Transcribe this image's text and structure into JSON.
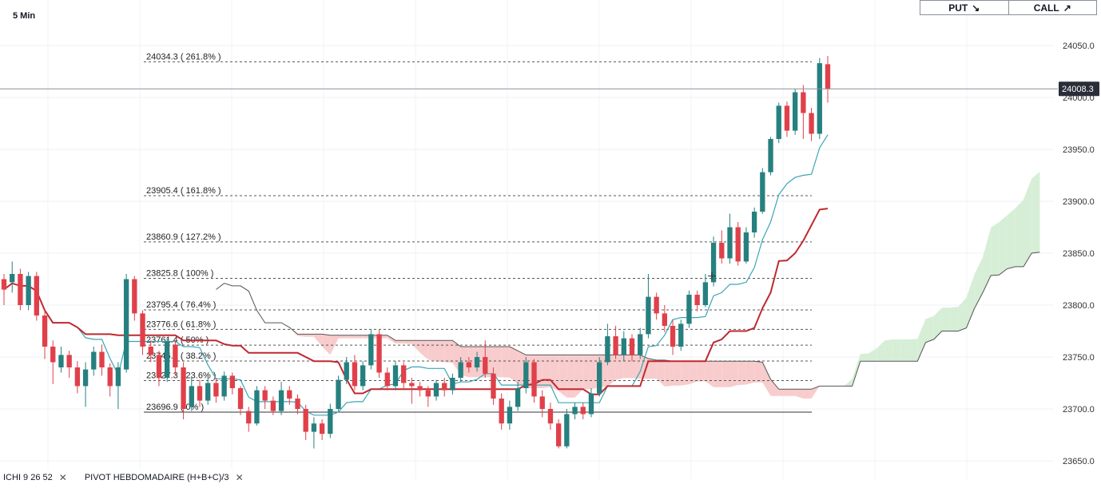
{
  "timeframe": "5 Min",
  "trade": {
    "put_label": "PUT",
    "call_label": "CALL",
    "put_icon": "arrow-down-right-icon",
    "call_icon": "arrow-up-right-icon"
  },
  "indicators": [
    {
      "label": "ICHI  9  26  52"
    },
    {
      "label": "PIVOT  HEBDOMADAIRE  (H+B+C)/3"
    }
  ],
  "colors": {
    "up": "#26807f",
    "down": "#e0404a",
    "kijun": "#c0282e",
    "tenkan": "#3aa6b4",
    "cloud_bull": "#d6eed6",
    "cloud_bear": "#f8cccc",
    "fib": "#555555"
  },
  "chart_data": {
    "type": "candlestick",
    "ylim": [
      23640,
      24070
    ],
    "y_ticks": [
      23650,
      23700,
      23750,
      23800,
      23850,
      23900,
      23950,
      24000,
      24050
    ],
    "last_price": "24008.3",
    "fib_levels": [
      {
        "label": "24034.3 ( 261.8% )",
        "price": 24034.3
      },
      {
        "label": "23905.4 ( 161.8% )",
        "price": 23905.4
      },
      {
        "label": "23860.9 ( 127.2% )",
        "price": 23860.9
      },
      {
        "label": "23825.8 ( 100% )",
        "price": 23825.8
      },
      {
        "label": "23795.4 ( 76.4% )",
        "price": 23795.4
      },
      {
        "label": "23776.6 ( 61.8% )",
        "price": 23776.6
      },
      {
        "label": "23761.4 ( 50% )",
        "price": 23761.4
      },
      {
        "label": "23746.2 ( 38.2% )",
        "price": 23746.2
      },
      {
        "label": "23727.3 ( 23.6% )",
        "price": 23727.3
      },
      {
        "label": "23696.9 ( 0% )",
        "price": 23696.9
      }
    ],
    "candles": [
      [
        23825,
        23815,
        23830,
        23800
      ],
      [
        23822,
        23830,
        23842,
        23812
      ],
      [
        23830,
        23800,
        23835,
        23795
      ],
      [
        23800,
        23828,
        23832,
        23795
      ],
      [
        23828,
        23790,
        23832,
        23785
      ],
      [
        23790,
        23760,
        23795,
        23748
      ],
      [
        23760,
        23745,
        23766,
        23724
      ],
      [
        23740,
        23752,
        23760,
        23735
      ],
      [
        23752,
        23740,
        23756,
        23730
      ],
      [
        23740,
        23722,
        23746,
        23715
      ],
      [
        23722,
        23738,
        23745,
        23702
      ],
      [
        23738,
        23755,
        23760,
        23732
      ],
      [
        23755,
        23740,
        23762,
        23732
      ],
      [
        23740,
        23722,
        23744,
        23712
      ],
      [
        23722,
        23740,
        23745,
        23700
      ],
      [
        23738,
        23825,
        23830,
        23735
      ],
      [
        23825,
        23792,
        23828,
        23785
      ],
      [
        23792,
        23760,
        23795,
        23752
      ],
      [
        23760,
        23752,
        23766,
        23745
      ],
      [
        23752,
        23730,
        23756,
        23722
      ],
      [
        23730,
        23765,
        23768,
        23726
      ],
      [
        23762,
        23740,
        23766,
        23732
      ],
      [
        23740,
        23700,
        23745,
        23690
      ],
      [
        23702,
        23722,
        23730,
        23698
      ],
      [
        23722,
        23708,
        23728,
        23702
      ],
      [
        23708,
        23725,
        23732,
        23704
      ],
      [
        23725,
        23712,
        23730,
        23706
      ],
      [
        23712,
        23732,
        23736,
        23708
      ],
      [
        23732,
        23720,
        23735,
        23714
      ],
      [
        23720,
        23700,
        23722,
        23694
      ],
      [
        23698,
        23686,
        23702,
        23678
      ],
      [
        23686,
        23718,
        23722,
        23684
      ],
      [
        23718,
        23708,
        23722,
        23700
      ],
      [
        23708,
        23698,
        23712,
        23694
      ],
      [
        23698,
        23718,
        23726,
        23694
      ],
      [
        23718,
        23710,
        23722,
        23704
      ],
      [
        23710,
        23700,
        23714,
        23695
      ],
      [
        23700,
        23678,
        23704,
        23670
      ],
      [
        23678,
        23686,
        23692,
        23662
      ],
      [
        23686,
        23676,
        23690,
        23670
      ],
      [
        23676,
        23700,
        23705,
        23672
      ],
      [
        23700,
        23728,
        23732,
        23698
      ],
      [
        23728,
        23745,
        23750,
        23724
      ],
      [
        23745,
        23722,
        23752,
        23718
      ],
      [
        23722,
        23742,
        23746,
        23718
      ],
      [
        23742,
        23772,
        23776,
        23738
      ],
      [
        23772,
        23735,
        23776,
        23730
      ],
      [
        23735,
        23722,
        23740,
        23718
      ],
      [
        23722,
        23742,
        23746,
        23718
      ],
      [
        23742,
        23725,
        23745,
        23720
      ],
      [
        23725,
        23722,
        23730,
        23705
      ],
      [
        23722,
        23718,
        23726,
        23712
      ],
      [
        23718,
        23712,
        23722,
        23702
      ],
      [
        23712,
        23725,
        23728,
        23708
      ],
      [
        23725,
        23718,
        23730,
        23712
      ],
      [
        23718,
        23730,
        23734,
        23714
      ],
      [
        23730,
        23745,
        23750,
        23726
      ],
      [
        23745,
        23740,
        23750,
        23735
      ],
      [
        23740,
        23750,
        23755,
        23736
      ],
      [
        23750,
        23734,
        23766,
        23730
      ],
      [
        23734,
        23710,
        23740,
        23704
      ],
      [
        23710,
        23686,
        23715,
        23680
      ],
      [
        23686,
        23702,
        23708,
        23680
      ],
      [
        23702,
        23720,
        23726,
        23698
      ],
      [
        23720,
        23745,
        23750,
        23715
      ],
      [
        23745,
        23712,
        23748,
        23706
      ],
      [
        23712,
        23700,
        23718,
        23692
      ],
      [
        23700,
        23686,
        23706,
        23680
      ],
      [
        23686,
        23664,
        23690,
        23662
      ],
      [
        23664,
        23695,
        23700,
        23662
      ],
      [
        23695,
        23702,
        23706,
        23690
      ],
      [
        23702,
        23695,
        23706,
        23690
      ],
      [
        23695,
        23715,
        23720,
        23692
      ],
      [
        23715,
        23745,
        23750,
        23712
      ],
      [
        23745,
        23770,
        23782,
        23742
      ],
      [
        23770,
        23752,
        23780,
        23748
      ],
      [
        23752,
        23768,
        23775,
        23746
      ],
      [
        23768,
        23752,
        23772,
        23746
      ],
      [
        23752,
        23772,
        23778,
        23748
      ],
      [
        23772,
        23808,
        23830,
        23768
      ],
      [
        23808,
        23792,
        23812,
        23786
      ],
      [
        23792,
        23780,
        23800,
        23774
      ],
      [
        23780,
        23760,
        23786,
        23752
      ],
      [
        23760,
        23782,
        23786,
        23756
      ],
      [
        23782,
        23810,
        23814,
        23778
      ],
      [
        23810,
        23800,
        23814,
        23794
      ],
      [
        23800,
        23822,
        23830,
        23798
      ],
      [
        23822,
        23860,
        23866,
        23818
      ],
      [
        23860,
        23845,
        23872,
        23840
      ],
      [
        23845,
        23875,
        23888,
        23840
      ],
      [
        23875,
        23842,
        23880,
        23838
      ],
      [
        23842,
        23870,
        23875,
        23840
      ],
      [
        23870,
        23890,
        23894,
        23865
      ],
      [
        23890,
        23928,
        23932,
        23888
      ],
      [
        23928,
        23960,
        23962,
        23925
      ],
      [
        23960,
        23992,
        23995,
        23956
      ],
      [
        23992,
        23968,
        23996,
        23962
      ],
      [
        23968,
        24005,
        24008,
        23964
      ],
      [
        24005,
        23985,
        24012,
        23960
      ],
      [
        23985,
        23965,
        23990,
        23958
      ],
      [
        23965,
        24033,
        24038,
        23960
      ],
      [
        24032,
        24008,
        24040,
        23995
      ]
    ]
  }
}
